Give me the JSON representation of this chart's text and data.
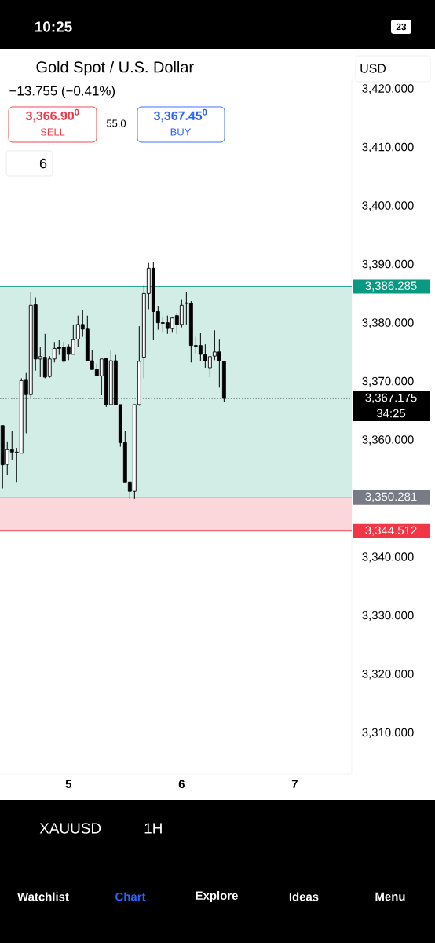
{
  "chart_data": {
    "type": "candlestick",
    "title": "Gold Spot / U.S. Dollar",
    "subtitle": "−13.755 (−0.41%)",
    "x": [
      4.4167,
      4.4583,
      4.5,
      4.5417,
      4.5833,
      4.625,
      4.6667,
      4.7083,
      4.75,
      4.7917,
      4.8333,
      4.875,
      4.9167,
      4.9583,
      5,
      5.0417,
      5.0833,
      5.125,
      5.1667,
      5.2083,
      5.25,
      5.2917,
      5.3333,
      5.375,
      5.4167,
      5.4583,
      5.5,
      5.5417,
      5.5833,
      5.625,
      5.6667,
      5.7083,
      5.75,
      5.7917,
      5.8333,
      5.875,
      5.9167,
      5.9583,
      6,
      6.0417,
      6.0833,
      6.125,
      6.1667,
      6.2083,
      6.25,
      6.2917,
      6.3333,
      6.375
    ],
    "ohlc": [
      [
        3362.5,
        3362.5,
        3351.8,
        3355.8
      ],
      [
        3355.9,
        3359.8,
        3354.0,
        3358.4
      ],
      [
        3358.4,
        3361.6,
        3356.7,
        3358.0
      ],
      [
        3357.9,
        3358.7,
        3352.9,
        3358.0
      ],
      [
        3357.8,
        3370.6,
        3357.8,
        3370.2
      ],
      [
        3370.4,
        3371.5,
        3361.2,
        3367.8
      ],
      [
        3367.8,
        3385.3,
        3367.2,
        3383.1
      ],
      [
        3383.2,
        3384.4,
        3371.9,
        3373.9
      ],
      [
        3373.9,
        3376.0,
        3370.8,
        3374.3
      ],
      [
        3374.2,
        3378.2,
        3370.6,
        3370.8
      ],
      [
        3370.9,
        3374.4,
        3370.7,
        3373.9
      ],
      [
        3373.9,
        3376.8,
        3373.3,
        3375.7
      ],
      [
        3375.9,
        3377.1,
        3374.6,
        3375.7
      ],
      [
        3375.9,
        3376.8,
        3373.3,
        3373.5
      ],
      [
        3376.0,
        3376.4,
        3373.7,
        3374.7
      ],
      [
        3374.7,
        3379.8,
        3374.7,
        3377.2
      ],
      [
        3377.3,
        3381.3,
        3376.0,
        3379.8
      ],
      [
        3379.8,
        3382.3,
        3377.7,
        3379.0
      ],
      [
        3379.0,
        3381.3,
        3373.6,
        3373.6
      ],
      [
        3373.6,
        3375.4,
        3372.1,
        3372.1
      ],
      [
        3372.1,
        3373.1,
        3370.9,
        3371.0
      ],
      [
        3371.0,
        3373.9,
        3367.7,
        3373.9
      ],
      [
        3374.0,
        3374.0,
        3365.7,
        3366.1
      ],
      [
        3366.1,
        3375.4,
        3366.1,
        3373.6
      ],
      [
        3373.6,
        3374.6,
        3366.1,
        3366.1
      ],
      [
        3366.1,
        3366.1,
        3358.9,
        3359.6
      ],
      [
        3359.6,
        3361.6,
        3352.9,
        3352.9
      ],
      [
        3352.9,
        3352.9,
        3350.0,
        3351.3
      ],
      [
        3351.3,
        3366.1,
        3350.0,
        3366.1
      ],
      [
        3366.1,
        3379.5,
        3365.9,
        3373.5
      ],
      [
        3374.2,
        3386.5,
        3370.6,
        3385.1
      ],
      [
        3385.1,
        3390.3,
        3382.4,
        3389.4
      ],
      [
        3389.4,
        3390.5,
        3377.1,
        3382.0
      ],
      [
        3382.0,
        3382.9,
        3378.9,
        3380.1
      ],
      [
        3380.1,
        3381.1,
        3378.4,
        3380.0
      ],
      [
        3380.1,
        3381.3,
        3378.2,
        3379.1
      ],
      [
        3379.1,
        3380.9,
        3378.4,
        3380.9
      ],
      [
        3381.3,
        3381.8,
        3378.2,
        3379.8
      ],
      [
        3379.8,
        3384.0,
        3379.3,
        3383.1
      ],
      [
        3383.4,
        3385.3,
        3379.8,
        3383.5
      ],
      [
        3383.4,
        3383.8,
        3373.3,
        3376.2
      ],
      [
        3376.2,
        3377.7,
        3374.8,
        3376.1
      ],
      [
        3376.2,
        3378.3,
        3373.5,
        3374.7
      ],
      [
        3374.6,
        3376.4,
        3372.4,
        3373.6
      ],
      [
        3372.4,
        3374.3,
        3370.8,
        3374.3
      ],
      [
        3374.4,
        3378.8,
        3373.7,
        3375.1
      ],
      [
        3375.1,
        3377.2,
        3369.0,
        3373.6
      ],
      [
        3373.5,
        3373.5,
        3366.6,
        3367.2
      ]
    ],
    "xlim": [
      4.394,
      7.504
    ],
    "xticks": [
      5,
      6,
      7
    ],
    "ylim": [
      3303.0,
      3421.8
    ],
    "yticks": [
      {
        "value": 3310,
        "label": "3,310.000"
      },
      {
        "value": 3320,
        "label": "3,320.000"
      },
      {
        "value": 3330,
        "label": "3,330.000"
      },
      {
        "value": 3340,
        "label": "3,340.000"
      },
      {
        "value": 3360,
        "label": "3,360.000"
      },
      {
        "value": 3370,
        "label": "3,370.000"
      },
      {
        "value": 3380,
        "label": "3,380.000"
      },
      {
        "value": 3390,
        "label": "3,390.000"
      },
      {
        "value": 3400,
        "label": "3,400.000"
      },
      {
        "value": 3410,
        "label": "3,410.000"
      },
      {
        "value": 3420,
        "label": "3,420.000"
      }
    ],
    "bands": [
      {
        "axis": "y",
        "from": 3350.281,
        "to": 3386.285,
        "color": "#d2ece6"
      },
      {
        "axis": "y",
        "from": 3344.512,
        "to": 3350.281,
        "color": "#fbd6da"
      }
    ],
    "ref_lines": [
      {
        "axis": "y",
        "value": 3386.285,
        "label": "3,386.285",
        "color": "#089981",
        "line_style": "solid"
      },
      {
        "axis": "y",
        "value": 3350.281,
        "label": "3,350.281",
        "color": "#787b86",
        "line_style": "solid"
      },
      {
        "axis": "y",
        "value": 3344.512,
        "label": "3,344.512",
        "color": "#f23645",
        "line_style": "solid"
      },
      {
        "axis": "y",
        "value": 3367.175,
        "label": "3,367.175",
        "color": "#000000",
        "line_style": "dotted"
      }
    ],
    "annotations": [
      "3,366.90$^{0}$",
      "SELL",
      "55.0",
      "3,367.45$^{0}$",
      "BUY",
      "6",
      "USD",
      "34:25",
      "XAUUSD",
      "1H",
      "Watchlist",
      "Chart",
      "Explore",
      "Ideas",
      "Menu",
      "10:25",
      "23"
    ],
    "grid": false
  }
}
